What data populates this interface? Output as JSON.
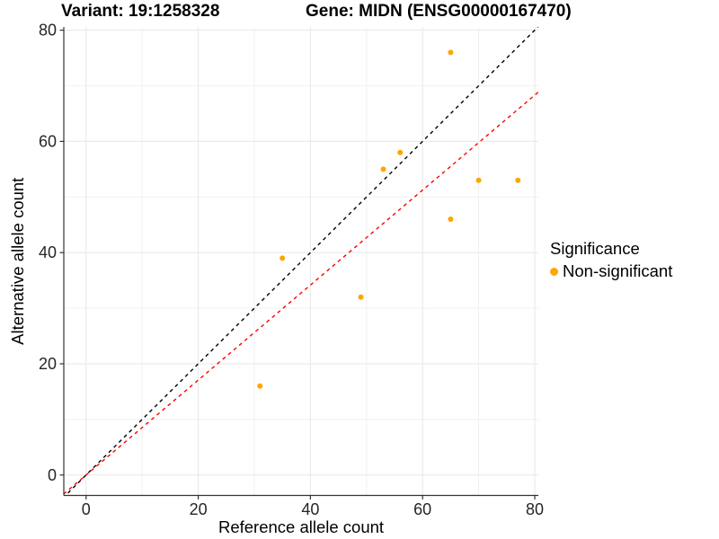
{
  "header": {
    "variant_title": "Variant: 19:1258328",
    "gene_title": "Gene: MIDN (ENSG00000167470)"
  },
  "legend": {
    "title": "Significance",
    "items": [
      {
        "label": "Non-significant",
        "color": "#FFA500"
      }
    ]
  },
  "chart_data": {
    "type": "scatter",
    "title": "Variant: 19:1258328  Gene: MIDN (ENSG00000167470)",
    "xlabel": "Reference allele count",
    "ylabel": "Alternative allele count",
    "xlim": [
      -3.97,
      80.64
    ],
    "ylim": [
      -3.67,
      80.58
    ],
    "x_ticks": [
      0,
      20,
      40,
      60,
      80
    ],
    "y_ticks": [
      0,
      20,
      40,
      60,
      80
    ],
    "x_minor_ticks": [
      10,
      30,
      50,
      70
    ],
    "y_minor_ticks": [
      10,
      30,
      50,
      70
    ],
    "grid": true,
    "legend_position": "right",
    "series": [
      {
        "name": "Non-significant",
        "color": "#FFA500",
        "points": [
          [
            65,
            76
          ],
          [
            56,
            58
          ],
          [
            53,
            55
          ],
          [
            70,
            53
          ],
          [
            77,
            53
          ],
          [
            65,
            46
          ],
          [
            35,
            39
          ],
          [
            49,
            32
          ],
          [
            31,
            16
          ]
        ]
      }
    ],
    "lines": [
      {
        "name": "identity-line",
        "slope": 1,
        "intercept": 0,
        "color": "#000000",
        "dash": "4 4"
      },
      {
        "name": "fit-line",
        "slope": 0.854,
        "intercept": 0,
        "color": "#FF0000",
        "dash": "4 4"
      }
    ],
    "colors": {
      "major_grid": "#E7E7E7",
      "minor_grid": "#F1F1F1",
      "axis_line": "#333333",
      "tick_text": "#262626",
      "axis_title_text": "#000000"
    }
  }
}
